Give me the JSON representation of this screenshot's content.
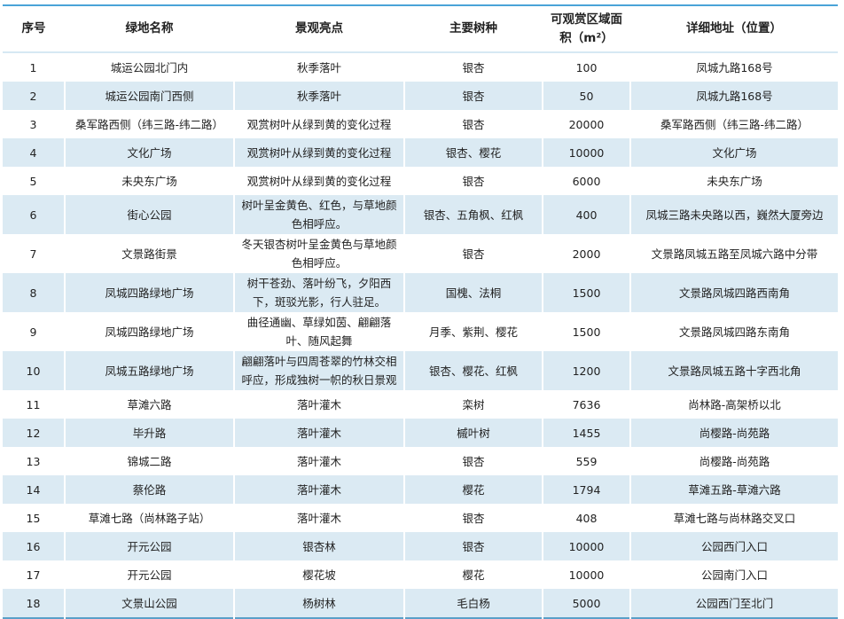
{
  "table": {
    "headers": [
      "序号",
      "绿地名称",
      "景观亮点",
      "主要树种",
      "可观赏区域面积（m²）",
      "详细地址（位置）"
    ],
    "rows": [
      [
        "1",
        "城运公园北门内",
        "秋季落叶",
        "银杏",
        "100",
        "凤城九路168号"
      ],
      [
        "2",
        "城运公园南门西侧",
        "秋季落叶",
        "银杏",
        "50",
        "凤城九路168号"
      ],
      [
        "3",
        "桑军路西侧（纬三路-纬二路）",
        "观赏树叶从绿到黄的变化过程",
        "银杏",
        "20000",
        "桑军路西侧（纬三路-纬二路）"
      ],
      [
        "4",
        "文化广场",
        "观赏树叶从绿到黄的变化过程",
        "银杏、樱花",
        "10000",
        "文化广场"
      ],
      [
        "5",
        "未央东广场",
        "观赏树叶从绿到黄的变化过程",
        "银杏",
        "6000",
        "未央东广场"
      ],
      [
        "6",
        "街心公园",
        "树叶呈金黄色、红色，与草地颜色相呼应。",
        "银杏、五角枫、红枫",
        "400",
        "凤城三路未央路以西，巍然大厦旁边"
      ],
      [
        "7",
        "文景路街景",
        "冬天银杏树叶呈金黄色与草地颜色相呼应。",
        "银杏",
        "2000",
        "文景路凤城五路至凤城六路中分带"
      ],
      [
        "8",
        "凤城四路绿地广场",
        "树干苍劲、落叶纷飞，夕阳西下，斑驳光影，行人驻足。",
        "国槐、法桐",
        "1500",
        "文景路凤城四路西南角"
      ],
      [
        "9",
        "凤城四路绿地广场",
        "曲径通幽、草绿如茵、翩翩落叶、随风起舞",
        "月季、紫荆、樱花",
        "1500",
        "文景路凤城四路东南角"
      ],
      [
        "10",
        "凤城五路绿地广场",
        "翩翩落叶与四周苍翠的竹林交相呼应，形成独树一帜的秋日景观",
        "银杏、樱花、红枫",
        "1200",
        "文景路凤城五路十字西北角"
      ],
      [
        "11",
        "草滩六路",
        "落叶灌木",
        "栾树",
        "7636",
        "尚林路-高架桥以北"
      ],
      [
        "12",
        "毕升路",
        "落叶灌木",
        "槭叶树",
        "1455",
        "尚樱路-尚苑路"
      ],
      [
        "13",
        "锦城二路",
        "落叶灌木",
        "银杏",
        "559",
        "尚樱路-尚苑路"
      ],
      [
        "14",
        "蔡伦路",
        "落叶灌木",
        "樱花",
        "1794",
        "草滩五路-草滩六路"
      ],
      [
        "15",
        "草滩七路（尚林路子站）",
        "落叶灌木",
        "银杏",
        "408",
        "草滩七路与尚林路交叉口"
      ],
      [
        "16",
        "开元公园",
        "银杏林",
        "银杏",
        "10000",
        "公园西门入口"
      ],
      [
        "17",
        "开元公园",
        "樱花坡",
        "樱花",
        "10000",
        "公园南门入口"
      ],
      [
        "18",
        "文景山公园",
        "杨树林",
        "毛白杨",
        "5000",
        "公园西门至北门"
      ]
    ]
  },
  "colors": {
    "stripe": "#dbeaf3",
    "rule": "#4aa3d8"
  }
}
